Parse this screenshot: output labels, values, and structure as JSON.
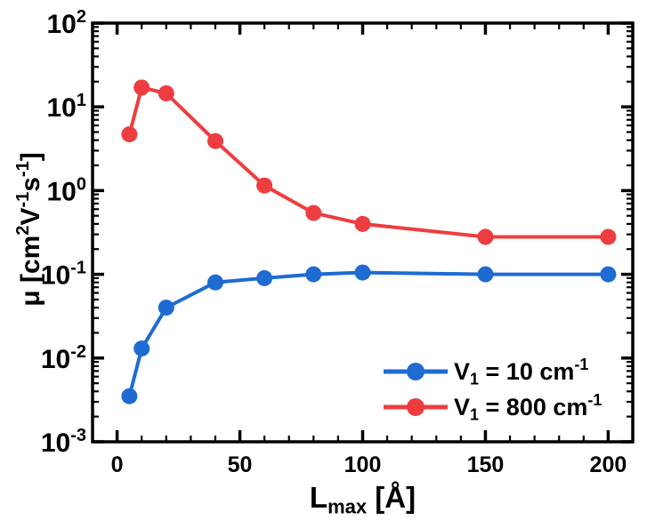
{
  "figure": {
    "background": "#ffffff",
    "frame_color": "#000000",
    "text_color": "#000000"
  },
  "chart_data": {
    "type": "line",
    "title": "",
    "xlabel": "Lmax [Å]",
    "ylabel": "μ [cm2V-1s-1]",
    "xlabel_rich": [
      {
        "t": "L"
      },
      {
        "t": "max",
        "sub": true
      },
      {
        "t": " [Å]"
      }
    ],
    "ylabel_rich": [
      {
        "t": "μ [cm"
      },
      {
        "t": "2",
        "sup": true
      },
      {
        "t": "V"
      },
      {
        "t": "-1",
        "sup": true
      },
      {
        "t": "s"
      },
      {
        "t": "-1",
        "sup": true
      },
      {
        "t": "]"
      }
    ],
    "x": [
      5,
      10,
      20,
      40,
      60,
      80,
      100,
      150,
      200
    ],
    "series": [
      {
        "name": "V1 = 10 cm-1",
        "color": "#1E6BD2",
        "values": [
          0.0035,
          0.013,
          0.04,
          0.08,
          0.09,
          0.1,
          0.105,
          0.1,
          0.1
        ],
        "legend_rich": [
          {
            "t": "V"
          },
          {
            "t": "1",
            "sub": true
          },
          {
            "t": " = 10 cm"
          },
          {
            "t": "-1",
            "sup": true
          }
        ]
      },
      {
        "name": "V1 = 800 cm-1",
        "color": "#EE3D40",
        "values": [
          4.7,
          17,
          14.5,
          3.9,
          1.15,
          0.54,
          0.4,
          0.28,
          0.28
        ],
        "legend_rich": [
          {
            "t": "V"
          },
          {
            "t": "1",
            "sub": true
          },
          {
            "t": " = 800 cm"
          },
          {
            "t": "-1",
            "sup": true
          }
        ]
      }
    ],
    "x_axis": {
      "min": -10,
      "max": 210,
      "major_ticks": [
        0,
        50,
        100,
        150,
        200
      ],
      "tick_labels": [
        "0",
        "50",
        "100",
        "150",
        "200"
      ],
      "minor_step": 10
    },
    "y_axis": {
      "scale": "log",
      "min_exp": -3,
      "max_exp": 2,
      "tick_exponents": [
        2,
        1,
        0,
        -1,
        -2,
        -3
      ],
      "tick_label_base": "10"
    },
    "legend_position": "bottom-right",
    "grid": false
  }
}
